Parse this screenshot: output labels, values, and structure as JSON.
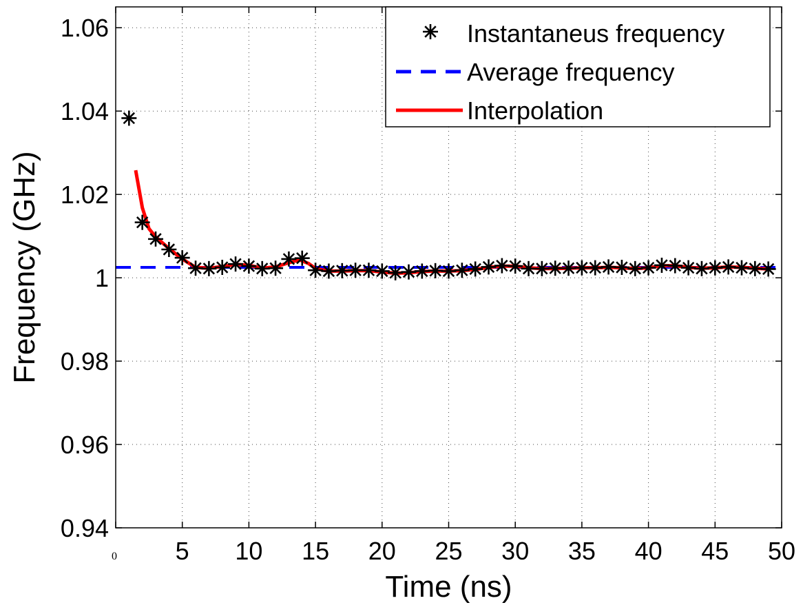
{
  "chart_data": {
    "type": "line",
    "xlabel": "Time (ns)",
    "ylabel": "Frequency (GHz)",
    "xlim": [
      0,
      50
    ],
    "ylim": [
      0.94,
      1.065
    ],
    "x_ticks": [
      0,
      5,
      10,
      15,
      20,
      25,
      30,
      35,
      40,
      45,
      50
    ],
    "x_tick_labels": [
      "0",
      "5",
      "10",
      "15",
      "20",
      "25",
      "30",
      "35",
      "40",
      "45",
      "50"
    ],
    "y_ticks": [
      0.94,
      0.96,
      0.98,
      1.0,
      1.02,
      1.04,
      1.06
    ],
    "y_tick_labels": [
      "0.94",
      "0.96",
      "0.98",
      "1",
      "1.02",
      "1.04",
      "1.06"
    ],
    "grid": true,
    "legend_position": "top-right",
    "series": [
      {
        "name": "Instantaneus frequency",
        "style": "markers",
        "marker": "asterisk",
        "color": "#000000",
        "x": [
          1,
          2,
          3,
          4,
          5,
          6,
          7,
          8,
          9,
          10,
          11,
          12,
          13,
          14,
          15,
          16,
          17,
          18,
          19,
          20,
          21,
          22,
          23,
          24,
          25,
          26,
          27,
          28,
          29,
          30,
          31,
          32,
          33,
          34,
          35,
          36,
          37,
          38,
          39,
          40,
          41,
          42,
          43,
          44,
          45,
          46,
          47,
          48,
          49
        ],
        "y": [
          1.0383,
          1.0133,
          1.0093,
          1.0068,
          1.0048,
          1.0023,
          1.0022,
          1.0025,
          1.0033,
          1.0028,
          1.0022,
          1.0023,
          1.0045,
          1.0047,
          1.0018,
          1.0016,
          1.0017,
          1.0018,
          1.0018,
          1.0016,
          1.0012,
          1.0014,
          1.0016,
          1.0017,
          1.0016,
          1.0018,
          1.0021,
          1.0026,
          1.0029,
          1.0028,
          1.0022,
          1.0022,
          1.0023,
          1.0023,
          1.0024,
          1.0024,
          1.0026,
          1.0025,
          1.0022,
          1.0024,
          1.003,
          1.0029,
          1.0024,
          1.0022,
          1.0024,
          1.0026,
          1.0024,
          1.0022,
          1.0021
        ]
      },
      {
        "name": "Average frequency",
        "style": "dashed",
        "color": "#0000ff",
        "x": [
          0,
          50
        ],
        "y": [
          1.0025,
          1.0025
        ]
      },
      {
        "name": "Interpolation",
        "style": "solid",
        "color": "#ff0000",
        "x": [
          1.5,
          2,
          2.5,
          3,
          4,
          5,
          6,
          7,
          8,
          9,
          10,
          11,
          12,
          13,
          13.8,
          14.5,
          15,
          16,
          17,
          18,
          19,
          20,
          21,
          22,
          23,
          24,
          25,
          26,
          27,
          28,
          29,
          30,
          31,
          32,
          33,
          34,
          35,
          36,
          37,
          38,
          39,
          40,
          41,
          42,
          43,
          44,
          45,
          46,
          47,
          48,
          49
        ],
        "y": [
          1.0258,
          1.0168,
          1.0118,
          1.0098,
          1.007,
          1.0045,
          1.0025,
          1.0023,
          1.0027,
          1.0032,
          1.003,
          1.0023,
          1.0026,
          1.0036,
          1.0043,
          1.0034,
          1.0022,
          1.0016,
          1.0016,
          1.0017,
          1.0017,
          1.0014,
          1.0011,
          1.0012,
          1.0015,
          1.0016,
          1.0016,
          1.0017,
          1.002,
          1.0025,
          1.0028,
          1.0028,
          1.0024,
          1.0022,
          1.0022,
          1.0023,
          1.0024,
          1.0024,
          1.0025,
          1.0024,
          1.0022,
          1.0024,
          1.0029,
          1.0029,
          1.0025,
          1.0023,
          1.0024,
          1.0026,
          1.0025,
          1.0023,
          1.0021
        ]
      }
    ]
  }
}
